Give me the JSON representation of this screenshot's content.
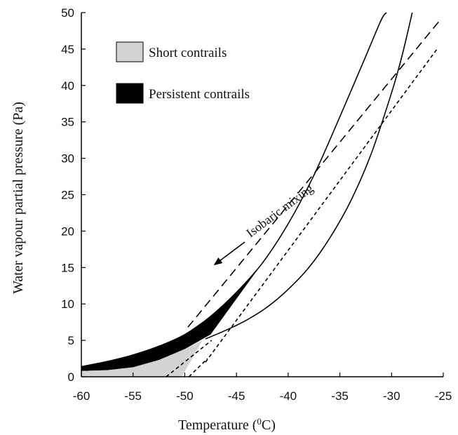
{
  "chart_data": {
    "type": "line",
    "title": "",
    "xlabel": "Temperature (",
    "xlabel_sup": "0",
    "xlabel_tail": "C)",
    "ylabel": "Water vapour partial pressure (Pa)",
    "xlim": [
      -60,
      -25
    ],
    "ylim": [
      0,
      50
    ],
    "x_ticks": [
      -60,
      -55,
      -50,
      -45,
      -40,
      -35,
      -30,
      -25
    ],
    "y_ticks": [
      0,
      5,
      10,
      15,
      20,
      25,
      30,
      35,
      40,
      45,
      50
    ],
    "x_tick_labels": [
      "-60",
      "-55",
      "-50",
      "-45",
      "-40",
      "-35",
      "-30",
      "-25"
    ],
    "y_tick_labels": [
      "0",
      "5",
      "10",
      "15",
      "20",
      "25",
      "30",
      "35",
      "40",
      "45",
      "50"
    ],
    "grid": false,
    "legend_position": "top-left",
    "legend": [
      {
        "label": "Short contrails",
        "fill": "#d3d3d3"
      },
      {
        "label": "Persistent contrails",
        "fill": "#000000"
      }
    ],
    "annotation": {
      "text": "Isobaric mixing",
      "arrow_from": [
        -44.2,
        18.5
      ],
      "arrow_to": [
        -47.2,
        15.3
      ]
    },
    "series": [
      {
        "style": "solid",
        "x": [
          -60,
          -57.5,
          -55,
          -52.5,
          -50,
          -47.5,
          -45,
          -42.5,
          -40,
          -37.5,
          -35,
          -32.5,
          -31,
          -30.5
        ],
        "y": [
          1.4,
          2.1,
          3.0,
          4.2,
          5.8,
          8.3,
          11.6,
          15.6,
          21.0,
          27.7,
          35.7,
          44.0,
          49.0,
          50.0
        ]
      },
      {
        "style": "solid",
        "x": [
          -48,
          -46,
          -44,
          -42,
          -40,
          -38,
          -36,
          -34,
          -32,
          -30,
          -29,
          -28
        ],
        "y": [
          5.2,
          6.4,
          7.8,
          9.6,
          12.0,
          15.0,
          19.0,
          24.0,
          30.5,
          39.0,
          44.0,
          50.0
        ]
      },
      {
        "style": "long-dashed",
        "x": [
          -49.7,
          -25.3
        ],
        "y": [
          6.8,
          49.0
        ]
      },
      {
        "style": "short-dashed",
        "x": [
          -48.0,
          -25.6
        ],
        "y": [
          2.0,
          45.0
        ]
      },
      {
        "style": "short-dashed",
        "x": [
          -51.8,
          -47.4
        ],
        "y": [
          0,
          5.0
        ]
      },
      {
        "style": "short-dashed",
        "x": [
          -49.6,
          -47.8
        ],
        "y": [
          0,
          2.5
        ]
      }
    ],
    "regions": [
      {
        "name": "Persistent contrails",
        "fill": "#000000",
        "upper": {
          "x": [
            -60,
            -57.5,
            -55,
            -52.5,
            -50,
            -47.5,
            -45,
            -42.5
          ],
          "y": [
            1.4,
            2.1,
            3.0,
            4.2,
            5.8,
            8.3,
            11.6,
            15.6
          ]
        },
        "lower": {
          "x": [
            -42.5,
            -45,
            -47.5,
            -50,
            -52.5,
            -55,
            -57.5,
            -60
          ],
          "y": [
            15.6,
            10.7,
            5.8,
            3.8,
            2.3,
            1.3,
            0.9,
            0.8
          ]
        }
      },
      {
        "name": "Short contrails",
        "fill": "#d3d3d3",
        "upper": {
          "x": [
            -60,
            -57.5,
            -55,
            -52.5,
            -50,
            -48.3
          ],
          "y": [
            0.8,
            0.9,
            1.3,
            2.3,
            3.8,
            5.0
          ]
        },
        "lower": {
          "x": [
            -48.3,
            -49.0,
            -50.3,
            -60
          ],
          "y": [
            5.0,
            3.2,
            0.0,
            0.0
          ]
        }
      }
    ]
  }
}
